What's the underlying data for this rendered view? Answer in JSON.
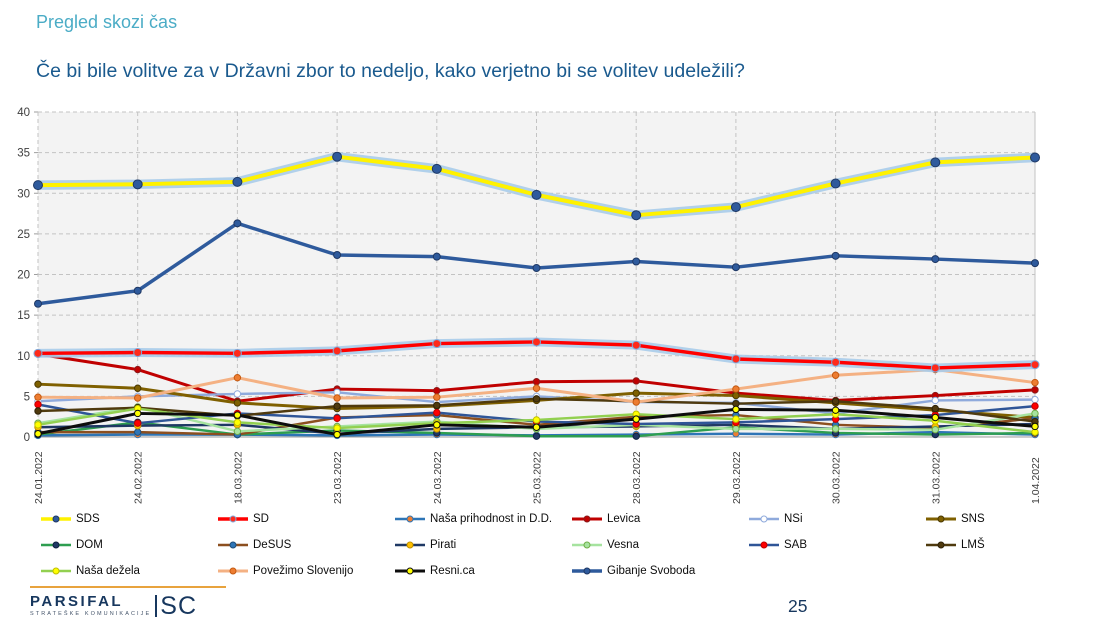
{
  "header": {
    "eyebrow": "Pregled skozi čas",
    "question": "Če bi bile volitve za v Državni zbor to nedeljo, kako verjetno bi se volitev udeležili?"
  },
  "footer": {
    "page_number": "25",
    "logo_main": "PARSIFAL",
    "logo_suffix": "SC",
    "logo_tagline": "STRATEŠKE KOMUNIKACIJE"
  },
  "colors": {
    "eyebrow_text": "#4BACC6",
    "question_text": "#1A5A8E",
    "plot_background": "#F3F3F3",
    "gridline": "#C3C3C3",
    "axis_line": "#9E9E9E",
    "tick_label": "#404040",
    "glow": "#A8CCEA",
    "logo_rule": "#E8A33D",
    "logo_text": "#17375E"
  },
  "chart_data": {
    "type": "line",
    "title": "Če bi bile volitve za v Državni zbor to nedeljo, kako verjetno bi se volitev udeležili?",
    "xlabel": "",
    "ylabel": "",
    "ylim": [
      0,
      40
    ],
    "ytick_step": 5,
    "grid": true,
    "legend_position": "bottom",
    "categories": [
      "24.01.2022",
      "24.02.2022",
      "18.03.2022",
      "23.03.2022",
      "24.03.2022",
      "25.03.2022",
      "28.03.2022",
      "29.03.2022",
      "30.03.2022",
      "31.03.2022",
      "1.04.2022"
    ],
    "series": [
      {
        "name": "SDS",
        "slug": "sds",
        "color": "#FFF200",
        "marker_fill": "#2E5A9C",
        "marker_stroke": "#1F3864",
        "width": 4,
        "marker_r": 4.5,
        "glow": true,
        "z": 3,
        "values": [
          31.0,
          31.1,
          31.4,
          34.5,
          33.0,
          29.8,
          27.3,
          28.3,
          31.2,
          33.8,
          34.4
        ]
      },
      {
        "name": "SD",
        "slug": "sd",
        "color": "#FF0000",
        "marker_fill": "#FF2A1A",
        "marker_stroke": "#7FA8D9",
        "width": 3.5,
        "marker_r": 4,
        "glow": true,
        "z": 2,
        "values": [
          10.3,
          10.4,
          10.3,
          10.6,
          11.5,
          11.7,
          11.3,
          9.6,
          9.2,
          8.5,
          8.9
        ]
      },
      {
        "name": "Naša prihodnost in D.D.",
        "slug": "nasa-prihodnost",
        "color": "#2E75B6",
        "marker_fill": "#ED7D31",
        "marker_stroke": "#2E75B6",
        "width": 2.5,
        "marker_r": 3.2,
        "glow": false,
        "z": 0,
        "values": [
          0.2,
          0.3,
          0.3,
          0.2,
          0.3,
          0.2,
          0.3,
          0.4,
          0.3,
          0.6,
          0.3
        ]
      },
      {
        "name": "Levica",
        "slug": "levica",
        "color": "#C00000",
        "marker_fill": "#C00000",
        "marker_stroke": "#8B1A1A",
        "width": 3,
        "marker_r": 3.2,
        "glow": false,
        "z": 0,
        "values": [
          10.2,
          8.3,
          4.4,
          5.9,
          5.7,
          6.8,
          6.9,
          5.4,
          4.5,
          5.1,
          5.8
        ]
      },
      {
        "name": "NSi",
        "slug": "nsi",
        "color": "#8FAADC",
        "marker_fill": "#FFFFFF",
        "marker_stroke": "#8FAADC",
        "width": 2.5,
        "marker_r": 3.2,
        "glow": false,
        "z": 0,
        "values": [
          4.4,
          5.0,
          5.3,
          5.5,
          4.3,
          5.0,
          4.3,
          4.2,
          2.9,
          4.5,
          4.6
        ]
      },
      {
        "name": "SNS",
        "slug": "sns",
        "color": "#7F6000",
        "marker_fill": "#7F6000",
        "marker_stroke": "#4A3800",
        "width": 3,
        "marker_r": 3.2,
        "glow": false,
        "z": 0,
        "values": [
          6.5,
          6.0,
          4.2,
          3.5,
          3.8,
          4.5,
          5.4,
          5.1,
          4.2,
          3.3,
          2.4
        ]
      },
      {
        "name": "DOM",
        "slug": "dom",
        "color": "#2E9E50",
        "marker_fill": "#1F3864",
        "marker_stroke": "#0F2040",
        "width": 2.5,
        "marker_r": 3.2,
        "glow": false,
        "z": 0,
        "values": [
          0.3,
          1.8,
          0.3,
          0.8,
          0.5,
          0.1,
          0.1,
          1.2,
          0.5,
          0.3,
          0.5
        ]
      },
      {
        "name": "DeSUS",
        "slug": "desus",
        "color": "#8C4F1F",
        "marker_fill": "#2E75B6",
        "marker_stroke": "#1F4E79",
        "width": 2.5,
        "marker_r": 3.2,
        "glow": false,
        "z": 0,
        "values": [
          0.6,
          0.6,
          0.3,
          2.4,
          2.7,
          1.5,
          2.5,
          2.7,
          1.5,
          1.1,
          2.3
        ]
      },
      {
        "name": "Pirati",
        "slug": "pirati",
        "color": "#1F3864",
        "marker_fill": "#FFC000",
        "marker_stroke": "#BF9000",
        "width": 2.5,
        "marker_r": 3.2,
        "glow": false,
        "z": 0,
        "values": [
          1.2,
          1.4,
          1.5,
          0.4,
          1.0,
          1.2,
          1.3,
          1.5,
          1.0,
          1.3,
          1.6
        ]
      },
      {
        "name": "Vesna",
        "slug": "vesna",
        "color": "#A6E39F",
        "marker_fill": "#A6E39F",
        "marker_stroke": "#70AD47",
        "width": 2.5,
        "marker_r": 3.2,
        "glow": false,
        "z": 0,
        "values": [
          1.7,
          3.7,
          0.7,
          1.3,
          1.9,
          1.0,
          1.5,
          1.0,
          1.0,
          0.9,
          2.9
        ]
      },
      {
        "name": "SAB",
        "slug": "sab",
        "color": "#2F5597",
        "marker_fill": "#FF0000",
        "marker_stroke": "#C00000",
        "width": 2.5,
        "marker_r": 3.2,
        "glow": false,
        "z": 0,
        "values": [
          4.0,
          1.7,
          2.9,
          2.3,
          3.0,
          1.9,
          1.6,
          1.8,
          2.2,
          2.7,
          3.8
        ]
      },
      {
        "name": "LMŠ",
        "slug": "lms",
        "color": "#4F3A0E",
        "marker_fill": "#4F3A0E",
        "marker_stroke": "#2E2208",
        "width": 2.5,
        "marker_r": 3.2,
        "glow": false,
        "z": 0,
        "values": [
          3.2,
          3.6,
          2.6,
          3.8,
          3.9,
          4.7,
          4.4,
          4.1,
          4.4,
          3.5,
          1.9
        ]
      },
      {
        "name": "Naša dežela",
        "slug": "nasa-dezela",
        "color": "#92D050",
        "marker_fill": "#FFFF00",
        "marker_stroke": "#BFBF00",
        "width": 2.5,
        "marker_r": 3.2,
        "glow": false,
        "z": 0,
        "values": [
          1.5,
          3.5,
          1.8,
          1.1,
          1.7,
          2.1,
          2.8,
          2.2,
          2.8,
          2.0,
          0.6
        ]
      },
      {
        "name": "Povežimo Slovenijo",
        "slug": "povezimo-slovenijo",
        "color": "#F4B183",
        "marker_fill": "#ED7D31",
        "marker_stroke": "#C55A11",
        "width": 3,
        "marker_r": 3.2,
        "glow": false,
        "z": 0,
        "values": [
          4.9,
          4.8,
          7.3,
          4.8,
          4.9,
          6.0,
          4.3,
          5.9,
          7.6,
          8.3,
          6.7
        ]
      },
      {
        "name": "Resni.ca",
        "slug": "resnica",
        "color": "#0D0D0D",
        "marker_fill": "#FFFF00",
        "marker_stroke": "#0D0D0D",
        "width": 3,
        "marker_r": 3.2,
        "glow": false,
        "z": 0,
        "values": [
          0.4,
          2.9,
          2.7,
          0.3,
          1.5,
          1.2,
          2.2,
          3.4,
          3.3,
          2.4,
          1.3
        ]
      },
      {
        "name": "Gibanje Svoboda",
        "slug": "gibanje-svoboda",
        "color": "#2E5A9C",
        "marker_fill": "#2E5A9C",
        "marker_stroke": "#1F3864",
        "width": 3.5,
        "marker_r": 3.5,
        "glow": false,
        "z": 1,
        "values": [
          16.4,
          18.0,
          26.3,
          22.4,
          22.2,
          20.8,
          21.6,
          20.9,
          22.3,
          21.9,
          21.4
        ]
      }
    ]
  }
}
